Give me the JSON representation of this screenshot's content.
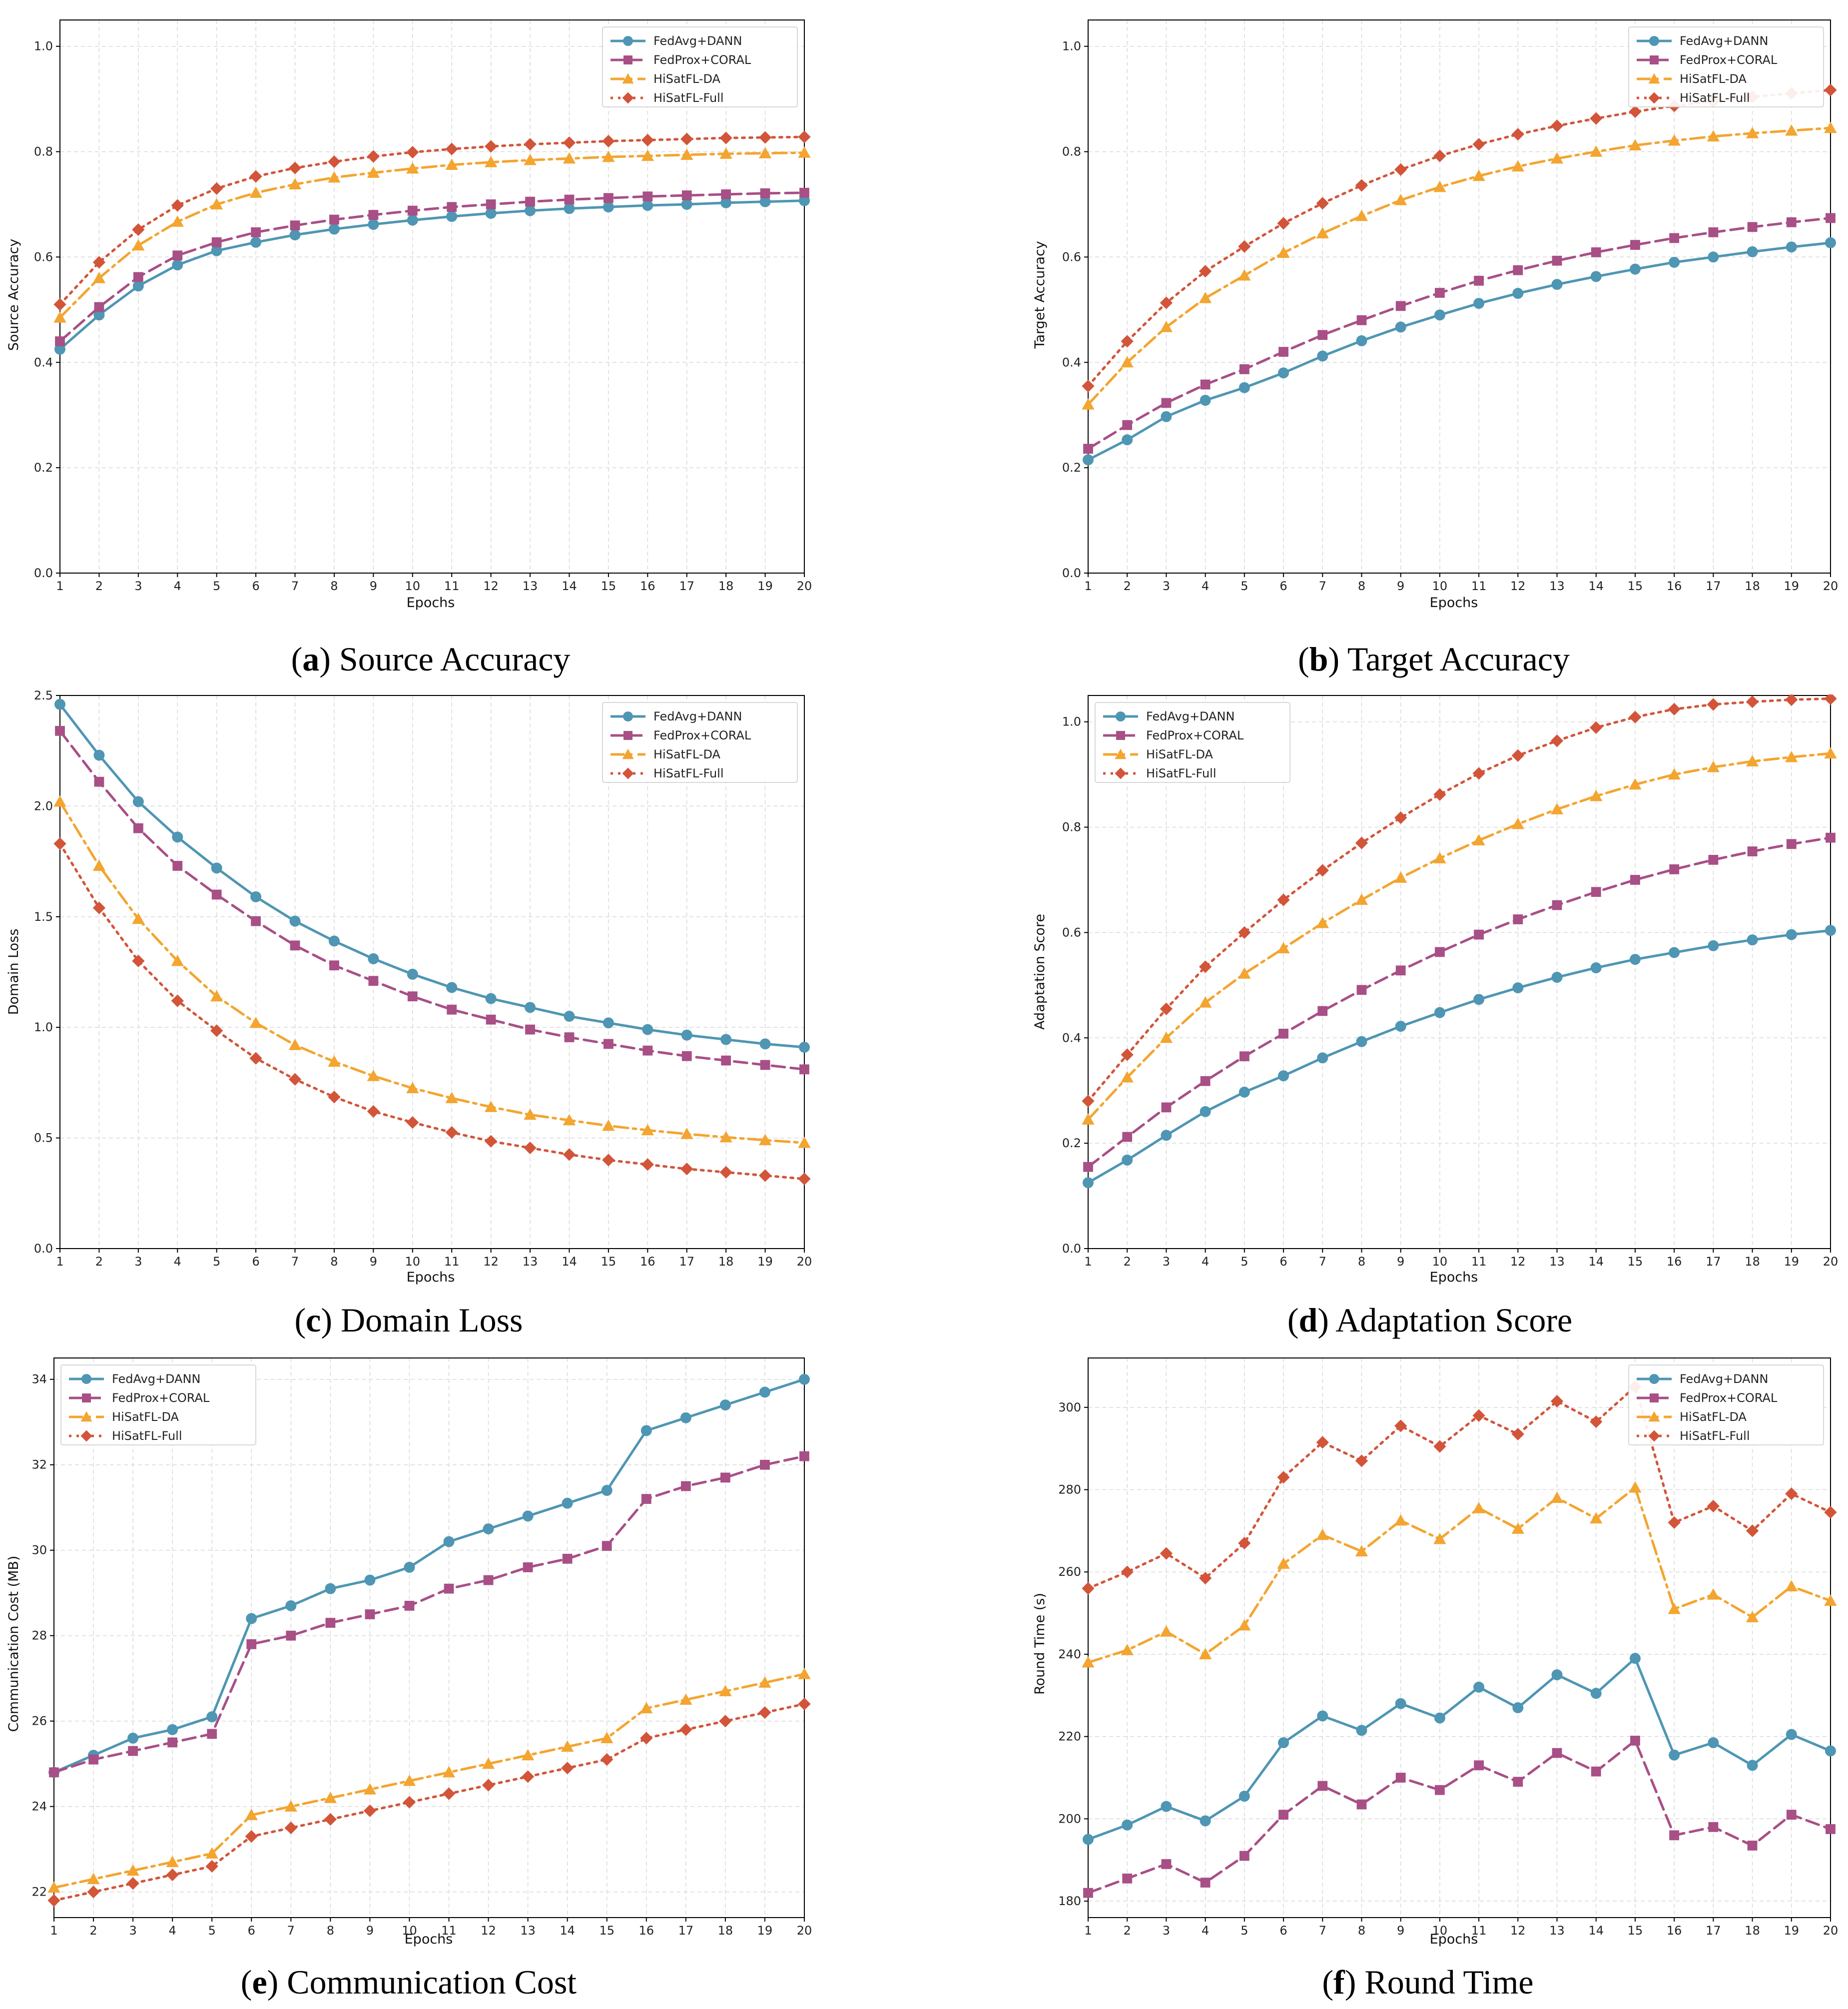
{
  "legend_labels": [
    "FedAvg+DANN",
    "FedProx+CORAL",
    "HiSatFL-DA",
    "HiSatFL-Full"
  ],
  "series_styles": [
    {
      "name": "FedAvg+DANN",
      "color": "#4e96b3",
      "marker": "circle",
      "line": "solid"
    },
    {
      "name": "FedProx+CORAL",
      "color": "#a84f86",
      "marker": "square",
      "line": "dashed"
    },
    {
      "name": "HiSatFL-DA",
      "color": "#f3a530",
      "marker": "triangle",
      "line": "dashdot"
    },
    {
      "name": "HiSatFL-Full",
      "color": "#d2553a",
      "marker": "diamond",
      "line": "dotted"
    }
  ],
  "chart_data": [
    {
      "type": "line",
      "caption_letter": "a",
      "caption_text": "Source Accuracy",
      "title": "",
      "xlabel": "Epochs",
      "ylabel": "Source Accuracy",
      "x": [
        1,
        2,
        3,
        4,
        5,
        6,
        7,
        8,
        9,
        10,
        11,
        12,
        13,
        14,
        15,
        16,
        17,
        18,
        19,
        20
      ],
      "ylim": [
        0,
        1.05
      ],
      "yticks": [
        0.0,
        0.2,
        0.4,
        0.6,
        0.8,
        1.0
      ],
      "ytick_labels": [
        "0.0",
        "0.2",
        "0.4",
        "0.6",
        "0.8",
        "1.0"
      ],
      "legend_position": "top-right",
      "grid": true,
      "series": [
        {
          "name": "FedAvg+DANN",
          "values": [
            0.425,
            0.49,
            0.545,
            0.585,
            0.612,
            0.628,
            0.642,
            0.653,
            0.662,
            0.67,
            0.677,
            0.683,
            0.688,
            0.692,
            0.695,
            0.698,
            0.7,
            0.703,
            0.705,
            0.707
          ]
        },
        {
          "name": "FedProx+CORAL",
          "values": [
            0.44,
            0.505,
            0.562,
            0.603,
            0.628,
            0.647,
            0.66,
            0.671,
            0.68,
            0.688,
            0.695,
            0.7,
            0.705,
            0.709,
            0.712,
            0.715,
            0.717,
            0.719,
            0.721,
            0.722
          ]
        },
        {
          "name": "HiSatFL-DA",
          "values": [
            0.485,
            0.56,
            0.622,
            0.667,
            0.7,
            0.722,
            0.738,
            0.751,
            0.76,
            0.768,
            0.775,
            0.78,
            0.784,
            0.787,
            0.79,
            0.792,
            0.794,
            0.796,
            0.797,
            0.798
          ]
        },
        {
          "name": "HiSatFL-Full",
          "values": [
            0.51,
            0.59,
            0.652,
            0.698,
            0.73,
            0.753,
            0.769,
            0.781,
            0.791,
            0.799,
            0.805,
            0.81,
            0.814,
            0.817,
            0.82,
            0.822,
            0.824,
            0.826,
            0.827,
            0.828
          ]
        }
      ]
    },
    {
      "type": "line",
      "caption_letter": "b",
      "caption_text": "Target Accuracy",
      "title": "",
      "xlabel": "Epochs",
      "ylabel": "Target Accuracy",
      "x": [
        1,
        2,
        3,
        4,
        5,
        6,
        7,
        8,
        9,
        10,
        11,
        12,
        13,
        14,
        15,
        16,
        17,
        18,
        19,
        20
      ],
      "ylim": [
        0,
        1.05
      ],
      "yticks": [
        0.0,
        0.2,
        0.4,
        0.6,
        0.8,
        1.0
      ],
      "ytick_labels": [
        "0.0",
        "0.2",
        "0.4",
        "0.6",
        "0.8",
        "1.0"
      ],
      "legend_position": "top-right",
      "grid": true,
      "series": [
        {
          "name": "FedAvg+DANN",
          "values": [
            0.215,
            0.253,
            0.297,
            0.328,
            0.352,
            0.38,
            0.412,
            0.441,
            0.467,
            0.49,
            0.512,
            0.531,
            0.548,
            0.563,
            0.577,
            0.59,
            0.6,
            0.61,
            0.619,
            0.627
          ]
        },
        {
          "name": "FedProx+CORAL",
          "values": [
            0.236,
            0.281,
            0.323,
            0.358,
            0.387,
            0.42,
            0.452,
            0.48,
            0.507,
            0.532,
            0.555,
            0.575,
            0.593,
            0.609,
            0.623,
            0.636,
            0.647,
            0.657,
            0.666,
            0.674
          ]
        },
        {
          "name": "HiSatFL-DA",
          "values": [
            0.32,
            0.4,
            0.467,
            0.522,
            0.565,
            0.608,
            0.645,
            0.678,
            0.708,
            0.733,
            0.754,
            0.772,
            0.787,
            0.8,
            0.812,
            0.821,
            0.829,
            0.835,
            0.84,
            0.845
          ]
        },
        {
          "name": "HiSatFL-Full",
          "values": [
            0.355,
            0.44,
            0.513,
            0.573,
            0.62,
            0.664,
            0.702,
            0.736,
            0.766,
            0.792,
            0.814,
            0.833,
            0.849,
            0.863,
            0.876,
            0.887,
            0.896,
            0.904,
            0.911,
            0.917
          ]
        }
      ]
    },
    {
      "type": "line",
      "caption_letter": "c",
      "caption_text": "Domain Loss",
      "title": "",
      "xlabel": "Epochs",
      "ylabel": "Domain Loss",
      "x": [
        1,
        2,
        3,
        4,
        5,
        6,
        7,
        8,
        9,
        10,
        11,
        12,
        13,
        14,
        15,
        16,
        17,
        18,
        19,
        20
      ],
      "ylim": [
        0,
        2.5
      ],
      "yticks": [
        0.0,
        0.5,
        1.0,
        1.5,
        2.0,
        2.5
      ],
      "ytick_labels": [
        "0.0",
        "0.5",
        "1.0",
        "1.5",
        "2.0",
        "2.5"
      ],
      "legend_position": "top-right",
      "grid": true,
      "series": [
        {
          "name": "FedAvg+DANN",
          "values": [
            2.46,
            2.23,
            2.02,
            1.86,
            1.72,
            1.59,
            1.48,
            1.39,
            1.31,
            1.24,
            1.18,
            1.13,
            1.09,
            1.05,
            1.02,
            0.99,
            0.965,
            0.945,
            0.925,
            0.91
          ]
        },
        {
          "name": "FedProx+CORAL",
          "values": [
            2.34,
            2.11,
            1.9,
            1.73,
            1.6,
            1.48,
            1.37,
            1.28,
            1.21,
            1.14,
            1.08,
            1.035,
            0.99,
            0.955,
            0.925,
            0.895,
            0.87,
            0.85,
            0.83,
            0.81
          ]
        },
        {
          "name": "HiSatFL-DA",
          "values": [
            2.02,
            1.73,
            1.49,
            1.3,
            1.14,
            1.02,
            0.92,
            0.845,
            0.78,
            0.725,
            0.68,
            0.64,
            0.605,
            0.58,
            0.555,
            0.535,
            0.518,
            0.503,
            0.49,
            0.478
          ]
        },
        {
          "name": "HiSatFL-Full",
          "values": [
            1.83,
            1.54,
            1.3,
            1.12,
            0.985,
            0.86,
            0.765,
            0.685,
            0.62,
            0.57,
            0.525,
            0.485,
            0.455,
            0.425,
            0.4,
            0.38,
            0.36,
            0.345,
            0.33,
            0.315
          ]
        }
      ]
    },
    {
      "type": "line",
      "caption_letter": "d",
      "caption_text": "Adaptation Score",
      "title": "",
      "xlabel": "Epochs",
      "ylabel": "Adaptation Score",
      "x": [
        1,
        2,
        3,
        4,
        5,
        6,
        7,
        8,
        9,
        10,
        11,
        12,
        13,
        14,
        15,
        16,
        17,
        18,
        19,
        20
      ],
      "ylim": [
        0,
        1.05
      ],
      "yticks": [
        0.0,
        0.2,
        0.4,
        0.6,
        0.8,
        1.0
      ],
      "ytick_labels": [
        "0.0",
        "0.2",
        "0.4",
        "0.6",
        "0.8",
        "1.0"
      ],
      "legend_position": "top-left",
      "grid": true,
      "series": [
        {
          "name": "FedAvg+DANN",
          "values": [
            0.125,
            0.168,
            0.215,
            0.26,
            0.297,
            0.328,
            0.362,
            0.393,
            0.422,
            0.448,
            0.473,
            0.495,
            0.515,
            0.533,
            0.549,
            0.562,
            0.575,
            0.586,
            0.596,
            0.604
          ]
        },
        {
          "name": "FedProx+CORAL",
          "values": [
            0.155,
            0.212,
            0.268,
            0.318,
            0.365,
            0.408,
            0.451,
            0.491,
            0.528,
            0.563,
            0.596,
            0.625,
            0.652,
            0.677,
            0.7,
            0.72,
            0.738,
            0.754,
            0.768,
            0.78
          ]
        },
        {
          "name": "HiSatFL-DA",
          "values": [
            0.245,
            0.325,
            0.4,
            0.467,
            0.522,
            0.57,
            0.618,
            0.662,
            0.704,
            0.741,
            0.775,
            0.806,
            0.834,
            0.859,
            0.881,
            0.9,
            0.914,
            0.925,
            0.933,
            0.94
          ]
        },
        {
          "name": "HiSatFL-Full",
          "values": [
            0.28,
            0.368,
            0.455,
            0.535,
            0.6,
            0.662,
            0.718,
            0.77,
            0.818,
            0.862,
            0.902,
            0.936,
            0.964,
            0.989,
            1.009,
            1.024,
            1.033,
            1.038,
            1.042,
            1.044
          ]
        }
      ]
    },
    {
      "type": "line",
      "caption_letter": "e",
      "caption_text": "Communication Cost",
      "title": "",
      "xlabel": "Epochs",
      "ylabel": "Communication Cost (MB)",
      "x": [
        1,
        2,
        3,
        4,
        5,
        6,
        7,
        8,
        9,
        10,
        11,
        12,
        13,
        14,
        15,
        16,
        17,
        18,
        19,
        20
      ],
      "ylim": [
        21.4,
        34.5
      ],
      "yticks": [
        22,
        24,
        26,
        28,
        30,
        32,
        34
      ],
      "ytick_labels": [
        "22",
        "24",
        "26",
        "28",
        "30",
        "32",
        "34"
      ],
      "legend_position": "top-left",
      "grid": true,
      "series": [
        {
          "name": "FedAvg+DANN",
          "values": [
            24.8,
            25.2,
            25.6,
            25.8,
            26.1,
            28.4,
            28.7,
            29.1,
            29.3,
            29.6,
            30.2,
            30.5,
            30.8,
            31.1,
            31.4,
            32.8,
            33.1,
            33.4,
            33.7,
            34.0
          ]
        },
        {
          "name": "FedProx+CORAL",
          "values": [
            24.8,
            25.1,
            25.3,
            25.5,
            25.7,
            27.8,
            28.0,
            28.3,
            28.5,
            28.7,
            29.1,
            29.3,
            29.6,
            29.8,
            30.1,
            31.2,
            31.5,
            31.7,
            32.0,
            32.2
          ]
        },
        {
          "name": "HiSatFL-DA",
          "values": [
            22.1,
            22.3,
            22.5,
            22.7,
            22.9,
            23.8,
            24.0,
            24.2,
            24.4,
            24.6,
            24.8,
            25.0,
            25.2,
            25.4,
            25.6,
            26.3,
            26.5,
            26.7,
            26.9,
            27.1
          ]
        },
        {
          "name": "HiSatFL-Full",
          "values": [
            21.8,
            22.0,
            22.2,
            22.4,
            22.6,
            23.3,
            23.5,
            23.7,
            23.9,
            24.1,
            24.3,
            24.5,
            24.7,
            24.9,
            25.1,
            25.6,
            25.8,
            26.0,
            26.2,
            26.4
          ]
        }
      ]
    },
    {
      "type": "line",
      "caption_letter": "f",
      "caption_text": "Round Time",
      "title": "",
      "xlabel": "Epochs",
      "ylabel": "Round Time (s)",
      "x": [
        1,
        2,
        3,
        4,
        5,
        6,
        7,
        8,
        9,
        10,
        11,
        12,
        13,
        14,
        15,
        16,
        17,
        18,
        19,
        20
      ],
      "ylim": [
        176,
        312
      ],
      "yticks": [
        180,
        200,
        220,
        240,
        260,
        280,
        300
      ],
      "ytick_labels": [
        "180",
        "200",
        "220",
        "240",
        "260",
        "280",
        "300"
      ],
      "legend_position": "top-right",
      "grid": true,
      "series": [
        {
          "name": "FedAvg+DANN",
          "values": [
            195,
            198.5,
            203,
            199.5,
            205.5,
            218.5,
            225,
            221.5,
            228,
            224.5,
            232,
            227,
            235,
            230.5,
            239,
            215.5,
            218.5,
            213,
            220.5,
            216.5
          ]
        },
        {
          "name": "FedProx+CORAL",
          "values": [
            182,
            185.5,
            189,
            184.5,
            191,
            201,
            208,
            203.5,
            210,
            207,
            213,
            209,
            216,
            211.5,
            219,
            196,
            198,
            193.5,
            201,
            197.5
          ]
        },
        {
          "name": "HiSatFL-DA",
          "values": [
            238,
            241,
            245.5,
            240,
            247,
            262,
            269,
            265,
            272.5,
            268,
            275.5,
            270.5,
            278,
            273,
            280.5,
            251,
            254.5,
            249,
            256.5,
            253
          ]
        },
        {
          "name": "HiSatFL-Full",
          "values": [
            256,
            260,
            264.5,
            258.5,
            267,
            283,
            291.5,
            287,
            295.5,
            290.5,
            298,
            293.5,
            301.5,
            296.5,
            305,
            272,
            276,
            270,
            279,
            274.5
          ]
        }
      ]
    }
  ]
}
